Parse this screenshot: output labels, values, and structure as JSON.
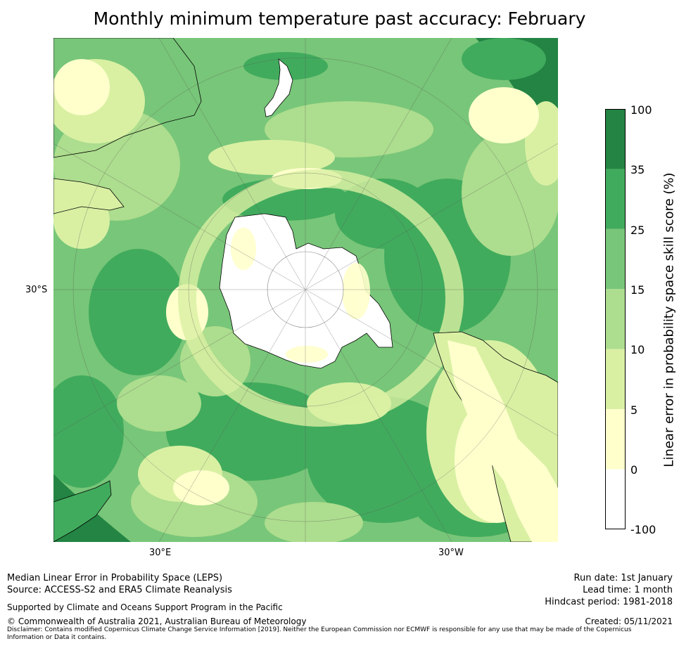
{
  "title": "Monthly minimum temperature past accuracy: February",
  "map": {
    "projection": "south-polar-stereographic",
    "lat_label": "30°S",
    "lon_labels": [
      "30°E",
      "30°W"
    ],
    "palette": [
      "#ffffff",
      "#ffffcc",
      "#d9f0a3",
      "#addd8e",
      "#78c679",
      "#41ab5d",
      "#238443"
    ],
    "land_fill": "#ffffff",
    "coast_color": "#000000"
  },
  "colorbar": {
    "label": "Linear error in probability space skill score (%)",
    "ticks": [
      "100",
      "35",
      "25",
      "15",
      "10",
      "5",
      "0",
      "-100"
    ],
    "bins": [
      {
        "from": -100,
        "to": 0,
        "color": "#ffffff"
      },
      {
        "from": 0,
        "to": 5,
        "color": "#ffffcc"
      },
      {
        "from": 5,
        "to": 10,
        "color": "#d9f0a3"
      },
      {
        "from": 10,
        "to": 15,
        "color": "#addd8e"
      },
      {
        "from": 15,
        "to": 25,
        "color": "#78c679"
      },
      {
        "from": 25,
        "to": 35,
        "color": "#41ab5d"
      },
      {
        "from": 35,
        "to": 100,
        "color": "#238443"
      }
    ]
  },
  "footer": {
    "left": {
      "line1": "Median Linear Error in Probability Space (LEPS)",
      "line2": "Source: ACCESS-S2 and ERA5 Climate Reanalysis",
      "support": "Supported by Climate and Oceans Support Program in the Pacific",
      "copyright": "© Commonwealth of Australia 2021, Australian Bureau of Meteorology"
    },
    "right": {
      "run_date": "Run date: 1st January",
      "lead_time": "Lead time: 1 month",
      "hindcast": "Hindcast period: 1981-2018",
      "created": "Created: 05/11/2021"
    },
    "disclaimer": "Disclaimer: Contains modified Copernicus Climate Change Service Information [2019]. Neither the European Commission nor ECMWF is responsible for any use that may be made of the Copernicus Information or Data it contains."
  }
}
